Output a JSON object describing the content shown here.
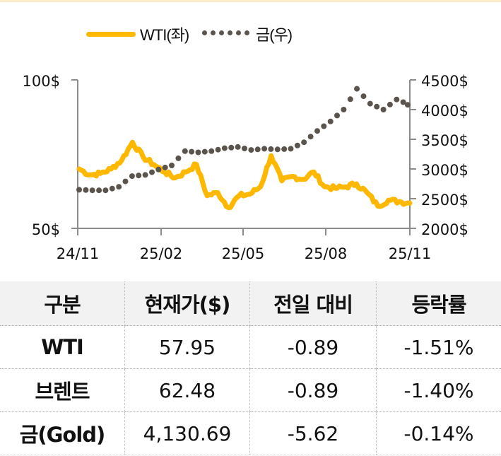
{
  "colors": {
    "wti": "#ffb800",
    "gold": "#5b544c",
    "axis": "#8c8c8c",
    "header_bg": "#f2f2f2"
  },
  "legend": {
    "wti_label": "WTI(좌)",
    "gold_label": "금(우)"
  },
  "chart_data": {
    "type": "line",
    "title": "",
    "x_ticks": [
      "24/11",
      "25/02",
      "25/05",
      "25/08",
      "25/11"
    ],
    "y_left": {
      "label": "WTI",
      "ticks": [
        "100$",
        "50$"
      ],
      "range": [
        50,
        100
      ]
    },
    "y_right": {
      "label": "금",
      "ticks": [
        "4500$",
        "4000$",
        "3500$",
        "3000$",
        "2500$",
        "2000$"
      ],
      "range": [
        2000,
        4500
      ]
    },
    "legend_position": "top",
    "grid": false,
    "series": [
      {
        "name": "WTI(좌)",
        "axis": "left",
        "style": "solid",
        "points": [
          [
            "24/11",
            70
          ],
          [
            "24/11+",
            68
          ],
          [
            "24/12",
            68.5
          ],
          [
            "24/12+",
            70
          ],
          [
            "25/01",
            73
          ],
          [
            "25/01 peak",
            79
          ],
          [
            "25/01+",
            74
          ],
          [
            "25/02",
            71.5
          ],
          [
            "25/02+",
            69
          ],
          [
            "25/03",
            67
          ],
          [
            "25/03+",
            69
          ],
          [
            "25/04 pre",
            71.5
          ],
          [
            "25/04",
            61
          ],
          [
            "25/04+",
            62
          ],
          [
            "25/04 low",
            57
          ],
          [
            "25/05",
            61
          ],
          [
            "25/05+",
            61.5
          ],
          [
            "25/06",
            64
          ],
          [
            "25/06 peak",
            74.5
          ],
          [
            "25/06+",
            66
          ],
          [
            "25/07",
            67.5
          ],
          [
            "25/07+",
            66.5
          ],
          [
            "25/07 spike",
            69
          ],
          [
            "25/08",
            64
          ],
          [
            "25/08+",
            63.5
          ],
          [
            "25/09",
            64
          ],
          [
            "25/09+",
            65
          ],
          [
            "25/10",
            62
          ],
          [
            "25/10 low",
            57.5
          ],
          [
            "25/10+",
            59.5
          ],
          [
            "25/11 pre",
            59
          ],
          [
            "25/11",
            58.5
          ]
        ]
      },
      {
        "name": "금(우)",
        "axis": "right",
        "style": "dotted",
        "points": [
          [
            "24/11",
            2650
          ],
          [
            "24/12",
            2640
          ],
          [
            "25/01",
            2640
          ],
          [
            "25/01+",
            2700
          ],
          [
            "25/02",
            2880
          ],
          [
            "25/02+",
            2900
          ],
          [
            "25/03",
            2990
          ],
          [
            "25/03+",
            3060
          ],
          [
            "25/04",
            3300
          ],
          [
            "25/04+",
            3280
          ],
          [
            "25/05",
            3300
          ],
          [
            "25/05+",
            3350
          ],
          [
            "25/06",
            3370
          ],
          [
            "25/06+",
            3320
          ],
          [
            "25/07",
            3340
          ],
          [
            "25/07+",
            3330
          ],
          [
            "25/08",
            3340
          ],
          [
            "25/08+",
            3450
          ],
          [
            "25/09",
            3640
          ],
          [
            "25/09+",
            3800
          ],
          [
            "25/10",
            4000
          ],
          [
            "25/10 peak",
            4350
          ],
          [
            "25/10+",
            4100
          ],
          [
            "25/11 pre",
            4000
          ],
          [
            "25/11+",
            4170
          ],
          [
            "25/11",
            4080
          ]
        ]
      }
    ]
  },
  "table": {
    "headers": [
      "구분",
      "현재가($)",
      "전일 대비",
      "등락률"
    ],
    "rows": [
      {
        "name": "WTI",
        "price": "57.95",
        "change": "-0.89",
        "rate": "-1.51%"
      },
      {
        "name": "브렌트",
        "price": "62.48",
        "change": "-0.89",
        "rate": "-1.40%"
      },
      {
        "name": "금(Gold)",
        "price": "4,130.69",
        "change": "-5.62",
        "rate": "-0.14%"
      }
    ]
  }
}
